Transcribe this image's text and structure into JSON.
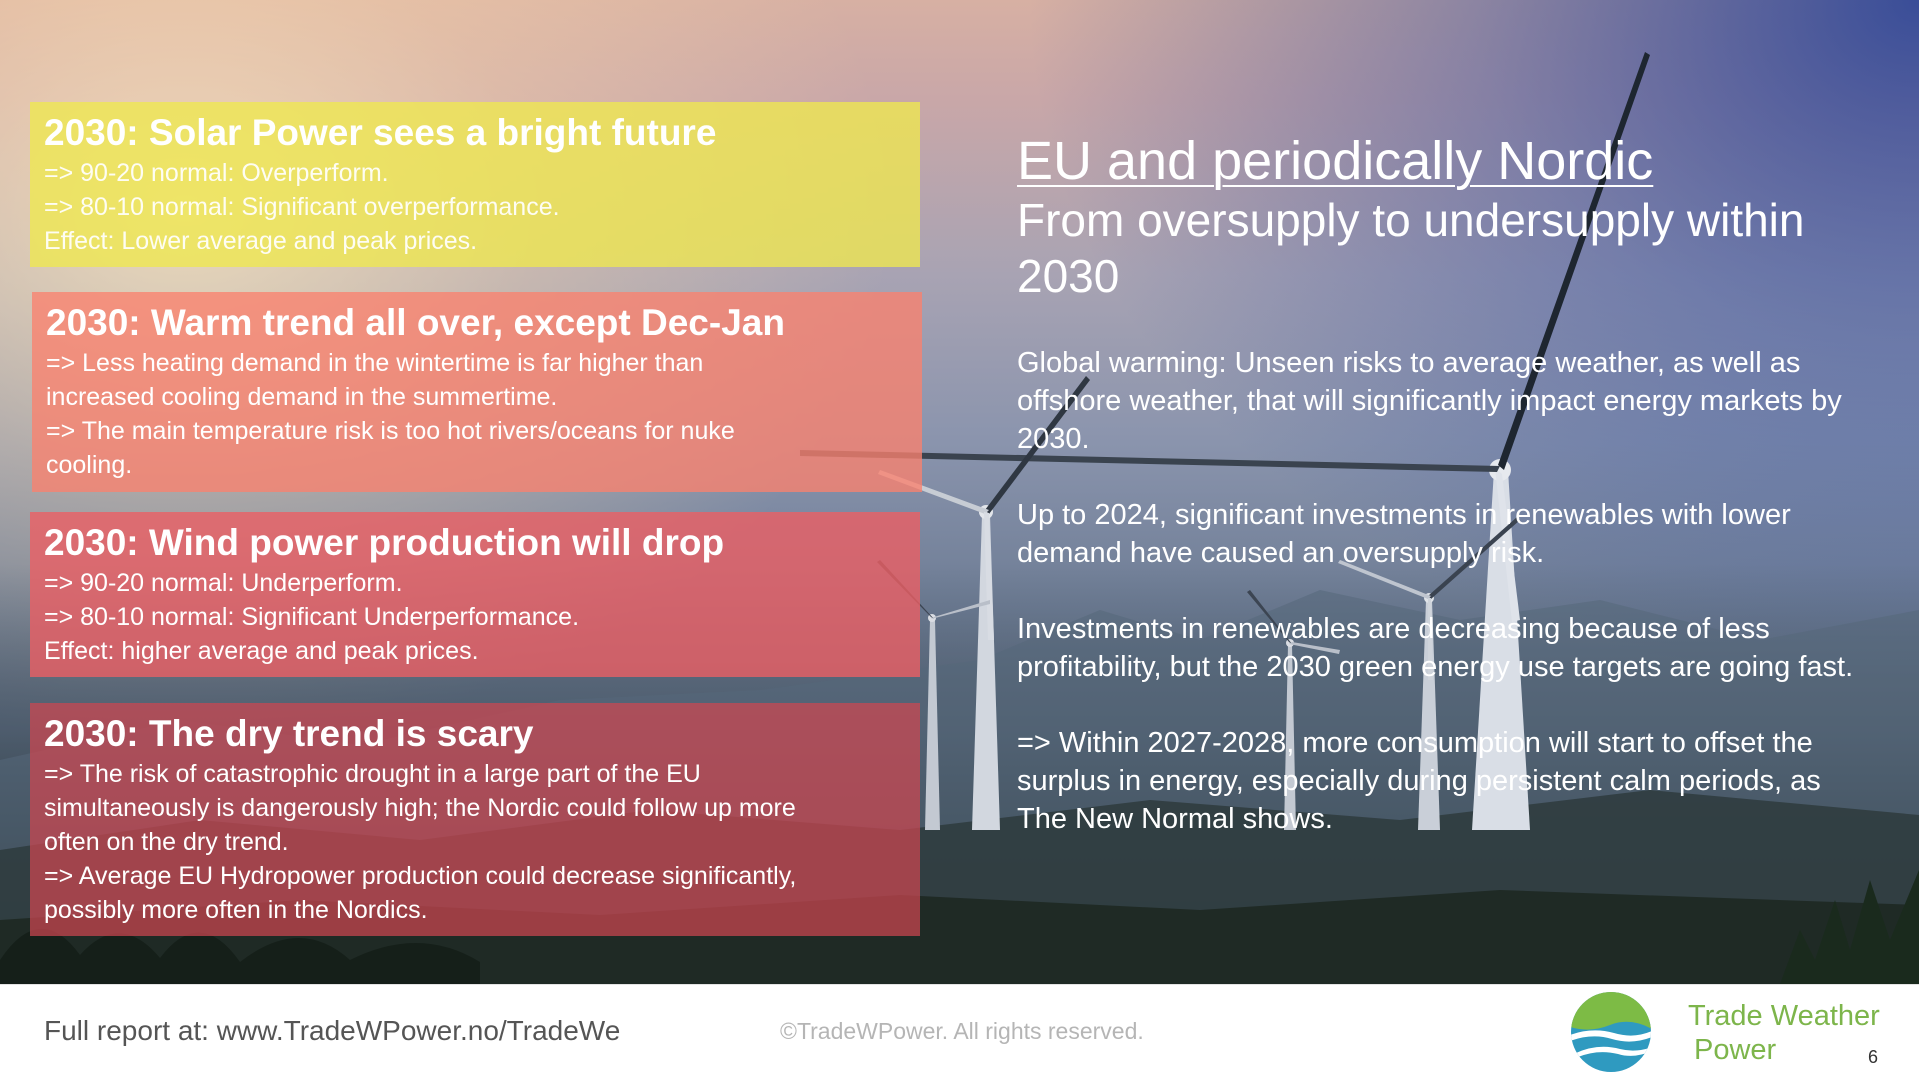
{
  "boxes": [
    {
      "title": "2030: Solar Power sees a bright future",
      "lines": [
        "=> 90-20 normal: Overperform.",
        "=> 80-10 normal: Significant overperformance.",
        "Effect: Lower average and peak prices."
      ],
      "color": "#eee850"
    },
    {
      "title": "2030: Warm trend all over, except Dec-Jan",
      "lines": [
        "=> Less heating demand in the wintertime is far higher than",
        "increased cooling demand in the summertime.",
        "=> The main temperature risk is too hot rivers/oceans for nuke",
        "cooling."
      ],
      "color": "#fa826e"
    },
    {
      "title": "2030: Wind power production will drop",
      "lines": [
        "=> 90-20 normal: Underperform.",
        "=> 80-10 normal: Significant Underperformance.",
        "Effect: higher average and peak prices."
      ],
      "color": "#eb5f64"
    },
    {
      "title": "2030: The dry trend is scary",
      "lines": [
        "=> The risk of catastrophic drought in a large part of the EU",
        "simultaneously is dangerously high; the Nordic could follow up more",
        "often on the dry trend.",
        "=> Average EU Hydropower production could decrease significantly,",
        "possibly more often in the Nordics."
      ],
      "color": "#cd4650"
    }
  ],
  "right": {
    "title": "EU and periodically Nordic",
    "subtitle": "From oversupply to undersupply within 2030",
    "paragraphs": [
      "Global warming: Unseen risks to average weather, as well as offshore weather, that will significantly impact energy markets by 2030.",
      "Up to 2024, significant investments in renewables with lower demand have caused an oversupply risk.",
      "Investments in renewables are decreasing because of less profitability, but the 2030 green energy use targets are going fast.",
      "=> Within 2027-2028, more consumption will start to offset the surplus in energy, especially during persistent calm periods, as The New Normal shows."
    ]
  },
  "footer": {
    "report": "Full report at: www.TradeWPower.no/TradeWe",
    "copyright": "©TradeWPower. All rights reserved.",
    "brand_line1": "Trade Weather",
    "brand_line2": "Power",
    "page_number": "6",
    "brand_color": "#7db54b"
  }
}
